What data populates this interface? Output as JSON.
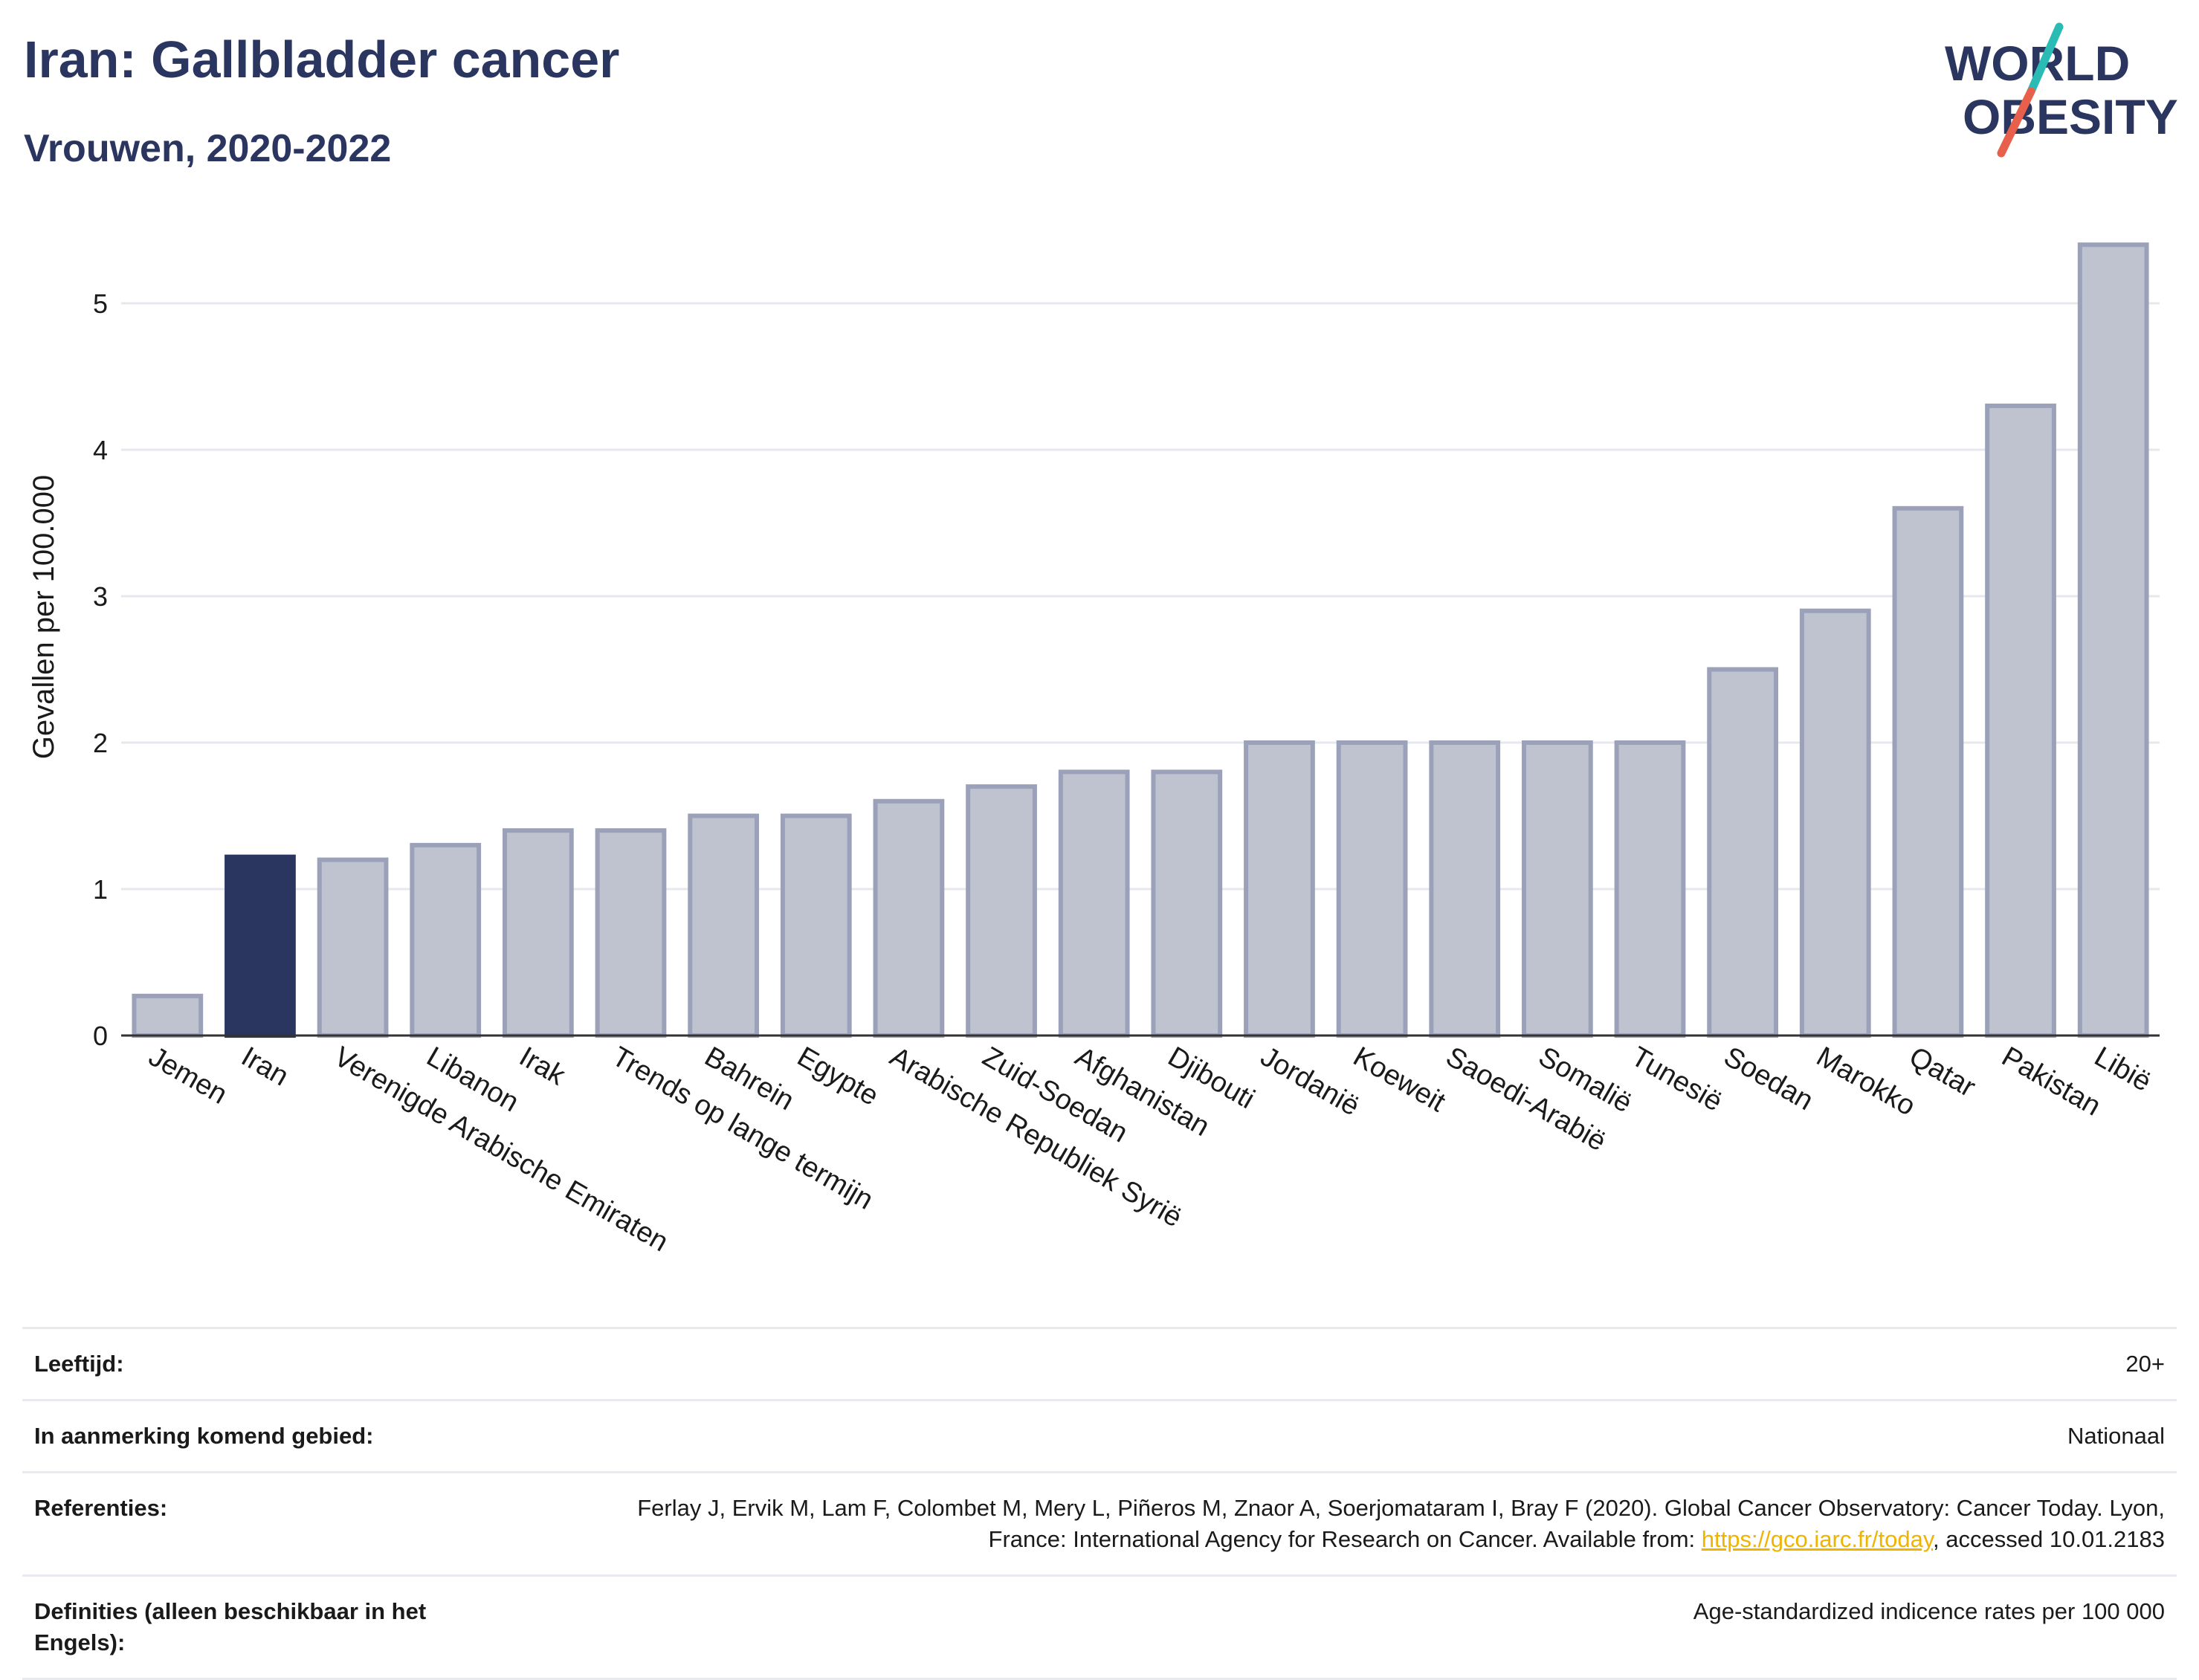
{
  "header": {
    "title": "Iran: Gallbladder cancer",
    "subtitle": "Vrouwen, 2020-2022"
  },
  "logo": {
    "line1": "WORLD",
    "line2": "OBESITY",
    "colors": {
      "text": "#2a3560",
      "slash_teal": "#2bbbb5",
      "slash_red": "#e8604c"
    }
  },
  "chart_data": {
    "type": "bar",
    "ylabel": "Gevallen per 100.000",
    "ylim": [
      0,
      5.5
    ],
    "yticks": [
      0,
      1,
      2,
      3,
      4,
      5
    ],
    "grid": true,
    "highlight_category": "Iran",
    "colors": {
      "bar": "#bfc3d0",
      "bar_edge": "#9aa1b8",
      "highlight": "#2a3560"
    },
    "categories": [
      "Jemen",
      "Iran",
      "Verenigde Arabische Emiraten",
      "Libanon",
      "Irak",
      "Trends op lange termijn",
      "Bahrein",
      "Egypte",
      "Arabische Republiek Syrië",
      "Zuid-Soedan",
      "Afghanistan",
      "Djibouti",
      "Jordanië",
      "Koeweit",
      "Saoedi-Arabië",
      "Somalië",
      "Tunesië",
      "Soedan",
      "Marokko",
      "Qatar",
      "Pakistan",
      "Libië"
    ],
    "values": [
      0.27,
      1.22,
      1.2,
      1.3,
      1.4,
      1.4,
      1.5,
      1.5,
      1.6,
      1.7,
      1.8,
      1.8,
      2.0,
      2.0,
      2.0,
      2.0,
      2.0,
      2.5,
      2.9,
      3.6,
      4.3,
      5.4
    ]
  },
  "info": {
    "rows": [
      {
        "label": "Leeftijd:",
        "value": "20+"
      },
      {
        "label": "In aanmerking komend gebied:",
        "value": "Nationaal"
      },
      {
        "label": "Referenties:",
        "value_before": "Ferlay J, Ervik M, Lam F, Colombet M, Mery L, Piñeros M, Znaor A, Soerjomataram I, Bray F (2020). Global Cancer Observatory: Cancer Today. Lyon, France: International Agency for Research on Cancer. Available from: ",
        "link": "https://gco.iarc.fr/today",
        "value_after": ", accessed 10.01.2183"
      },
      {
        "label": "Definities (alleen beschikbaar in het Engels):",
        "value": "Age-standardized indicence rates per 100 000"
      }
    ]
  }
}
